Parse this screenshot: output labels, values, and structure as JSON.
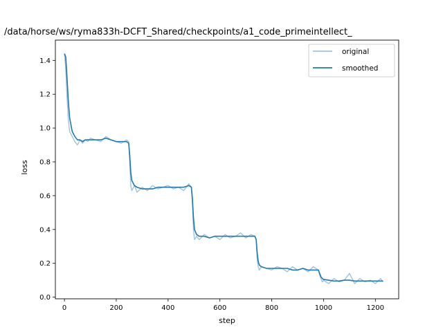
{
  "chart_data": {
    "type": "line",
    "title": "/data/horse/ws/ryma833h-DCFT_Shared/checkpoints/a1_code_primeintellect_",
    "xlabel": "step",
    "ylabel": "loss",
    "xlim": [
      -35,
      1290
    ],
    "ylim": [
      -0.01,
      1.52
    ],
    "xticks": [
      0,
      200,
      400,
      600,
      800,
      1000,
      1200
    ],
    "yticks": [
      0.0,
      0.2,
      0.4,
      0.6,
      0.8,
      1.0,
      1.2,
      1.4
    ],
    "xtick_labels": [
      "0",
      "200",
      "400",
      "600",
      "800",
      "1000",
      "1200"
    ],
    "ytick_labels": [
      "0.0",
      "0.2",
      "0.4",
      "0.6",
      "0.8",
      "1.0",
      "1.2",
      "1.4"
    ],
    "legend": {
      "placement": "top-right",
      "entries": [
        "original",
        "smoothed"
      ]
    },
    "grid": false,
    "colors": {
      "original": "#9ec4e0",
      "smoothed": "#1f77b4"
    },
    "series": [
      {
        "name": "original",
        "x": [
          0,
          5,
          10,
          15,
          20,
          30,
          40,
          50,
          60,
          70,
          80,
          90,
          100,
          120,
          140,
          160,
          180,
          200,
          220,
          240,
          248,
          252,
          256,
          260,
          270,
          280,
          300,
          320,
          340,
          360,
          380,
          400,
          420,
          440,
          460,
          480,
          490,
          494,
          498,
          502,
          510,
          520,
          540,
          560,
          580,
          600,
          620,
          640,
          660,
          680,
          700,
          720,
          735,
          740,
          744,
          748,
          752,
          760,
          780,
          800,
          820,
          840,
          860,
          880,
          900,
          920,
          940,
          960,
          980,
          985,
          990,
          995,
          1000,
          1020,
          1040,
          1060,
          1080,
          1100,
          1120,
          1140,
          1160,
          1180,
          1200,
          1220,
          1230
        ],
        "y": [
          1.44,
          1.35,
          1.18,
          1.05,
          0.98,
          0.95,
          0.92,
          0.9,
          0.93,
          0.91,
          0.93,
          0.92,
          0.94,
          0.93,
          0.92,
          0.95,
          0.93,
          0.92,
          0.91,
          0.93,
          0.92,
          0.8,
          0.66,
          0.63,
          0.66,
          0.62,
          0.65,
          0.63,
          0.66,
          0.64,
          0.65,
          0.66,
          0.64,
          0.65,
          0.63,
          0.67,
          0.65,
          0.55,
          0.4,
          0.34,
          0.36,
          0.34,
          0.37,
          0.35,
          0.36,
          0.34,
          0.37,
          0.35,
          0.36,
          0.38,
          0.35,
          0.37,
          0.36,
          0.34,
          0.22,
          0.18,
          0.16,
          0.18,
          0.17,
          0.16,
          0.18,
          0.17,
          0.15,
          0.18,
          0.16,
          0.17,
          0.15,
          0.18,
          0.16,
          0.13,
          0.11,
          0.09,
          0.1,
          0.08,
          0.11,
          0.09,
          0.1,
          0.14,
          0.08,
          0.11,
          0.09,
          0.1,
          0.08,
          0.11,
          0.09
        ]
      },
      {
        "name": "smoothed",
        "x": [
          0,
          5,
          10,
          15,
          20,
          30,
          40,
          50,
          60,
          70,
          80,
          100,
          120,
          140,
          160,
          180,
          200,
          220,
          240,
          248,
          252,
          256,
          260,
          270,
          280,
          300,
          320,
          340,
          360,
          380,
          400,
          420,
          440,
          460,
          480,
          490,
          494,
          498,
          502,
          510,
          520,
          540,
          560,
          580,
          600,
          620,
          640,
          660,
          680,
          700,
          720,
          735,
          740,
          744,
          748,
          752,
          760,
          780,
          800,
          820,
          840,
          860,
          880,
          900,
          920,
          940,
          960,
          980,
          985,
          990,
          995,
          1000,
          1020,
          1040,
          1060,
          1080,
          1100,
          1120,
          1140,
          1160,
          1180,
          1200,
          1220,
          1230
        ],
        "y": [
          1.44,
          1.42,
          1.3,
          1.16,
          1.06,
          0.98,
          0.95,
          0.93,
          0.93,
          0.92,
          0.93,
          0.93,
          0.93,
          0.93,
          0.94,
          0.93,
          0.92,
          0.92,
          0.92,
          0.91,
          0.84,
          0.74,
          0.69,
          0.66,
          0.65,
          0.64,
          0.64,
          0.64,
          0.65,
          0.65,
          0.65,
          0.65,
          0.65,
          0.65,
          0.66,
          0.65,
          0.58,
          0.47,
          0.4,
          0.37,
          0.36,
          0.36,
          0.35,
          0.36,
          0.36,
          0.36,
          0.36,
          0.36,
          0.36,
          0.36,
          0.36,
          0.36,
          0.34,
          0.26,
          0.21,
          0.19,
          0.18,
          0.17,
          0.17,
          0.17,
          0.17,
          0.17,
          0.16,
          0.16,
          0.17,
          0.16,
          0.16,
          0.16,
          0.14,
          0.12,
          0.11,
          0.105,
          0.1,
          0.095,
          0.095,
          0.1,
          0.1,
          0.095,
          0.095,
          0.095,
          0.095,
          0.095,
          0.095,
          0.095
        ]
      }
    ]
  }
}
